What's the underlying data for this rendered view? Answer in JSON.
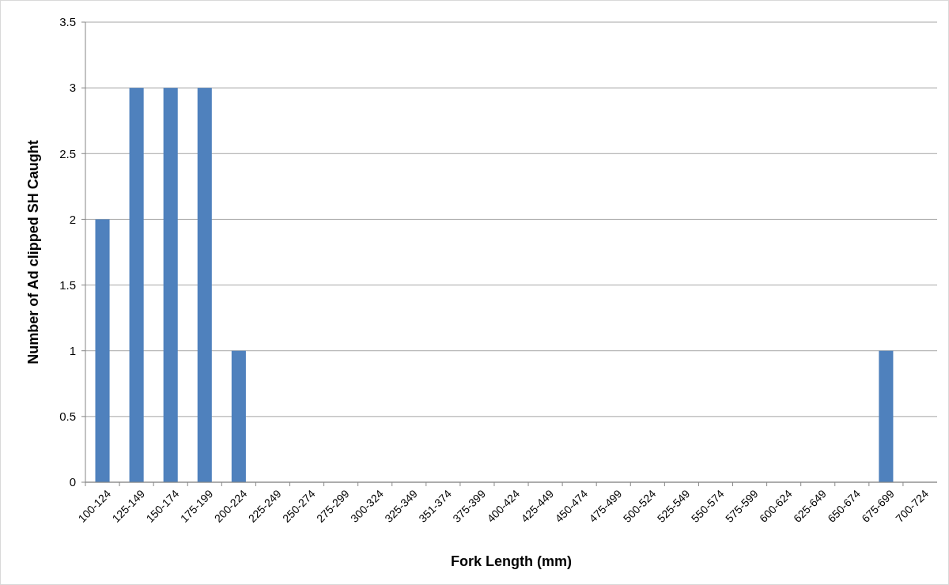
{
  "chart_data": {
    "type": "bar",
    "xlabel": "Fork Length (mm)",
    "ylabel": "Number of Ad clipped SH Caught",
    "categories": [
      "100-124",
      "125-149",
      "150-174",
      "175-199",
      "200-224",
      "225-249",
      "250-274",
      "275-299",
      "300-324",
      "325-349",
      "351-374",
      "375-399",
      "400-424",
      "425-449",
      "450-474",
      "475-499",
      "500-524",
      "525-549",
      "550-574",
      "575-599",
      "600-624",
      "625-649",
      "650-674",
      "675-699",
      "700-724"
    ],
    "values": [
      2,
      3,
      3,
      3,
      1,
      0,
      0,
      0,
      0,
      0,
      0,
      0,
      0,
      0,
      0,
      0,
      0,
      0,
      0,
      0,
      0,
      0,
      0,
      1,
      0
    ],
    "color": "#4f81bd",
    "ylim": [
      0,
      3.5
    ],
    "yticks": [
      0,
      0.5,
      1,
      1.5,
      2,
      2.5,
      3,
      3.5
    ],
    "grid": "y"
  }
}
